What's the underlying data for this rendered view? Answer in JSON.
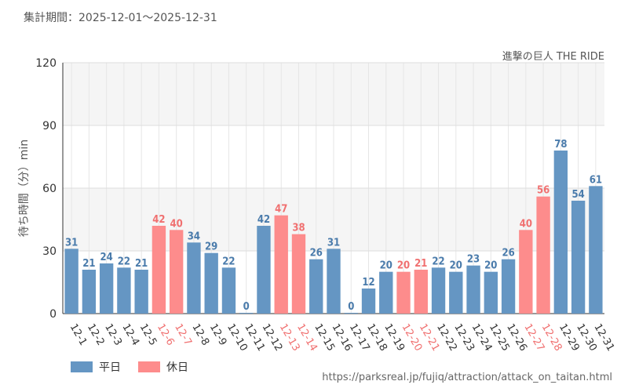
{
  "header": {
    "period_label": "集計期間：2025-12-01～2025-12-31",
    "attraction": "進撃の巨人 THE RIDE",
    "source_url": "https://parksreal.jp/fujiq/attraction/attack_on_taitan.html"
  },
  "legend": {
    "weekday": "平日",
    "holiday": "休日"
  },
  "colors": {
    "weekday": "#6596c3",
    "holiday": "#fd8c8c",
    "weekday_text": "#4a7bab",
    "holiday_text": "#f07070"
  },
  "chart_data": {
    "type": "bar",
    "title": "進撃の巨人 THE RIDE",
    "xlabel": "",
    "ylabel": "待ち時間（分）min",
    "ylim": [
      0,
      120
    ],
    "yticks": [
      0,
      30,
      60,
      90,
      120
    ],
    "categories": [
      "12-1",
      "12-2",
      "12-3",
      "12-4",
      "12-5",
      "12-6",
      "12-7",
      "12-8",
      "12-9",
      "12-10",
      "12-11",
      "12-12",
      "12-13",
      "12-14",
      "12-15",
      "12-16",
      "12-17",
      "12-18",
      "12-19",
      "12-20",
      "12-21",
      "12-22",
      "12-23",
      "12-24",
      "12-25",
      "12-26",
      "12-27",
      "12-28",
      "12-29",
      "12-30",
      "12-31"
    ],
    "values": [
      31,
      21,
      24,
      22,
      21,
      42,
      40,
      34,
      29,
      22,
      0,
      42,
      47,
      38,
      26,
      31,
      0,
      12,
      20,
      20,
      21,
      22,
      20,
      23,
      20,
      26,
      40,
      56,
      78,
      54,
      61
    ],
    "day_type": [
      "weekday",
      "weekday",
      "weekday",
      "weekday",
      "weekday",
      "holiday",
      "holiday",
      "weekday",
      "weekday",
      "weekday",
      "weekday",
      "weekday",
      "holiday",
      "holiday",
      "weekday",
      "weekday",
      "weekday",
      "weekday",
      "weekday",
      "holiday",
      "holiday",
      "weekday",
      "weekday",
      "weekday",
      "weekday",
      "weekday",
      "holiday",
      "holiday",
      "weekday",
      "weekday",
      "weekday"
    ],
    "legend_position": "bottom-left"
  }
}
